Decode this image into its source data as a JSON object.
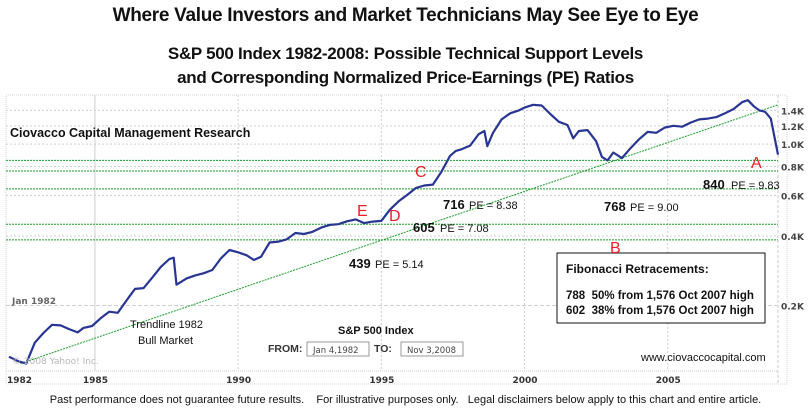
{
  "header": {
    "title": "Where Value Investors and Market Technicians May See Eye to Eye",
    "subtitle_line1": "S&P 500 Index 1982-2008:  Possible Technical Support Levels",
    "subtitle_line2": "and Corresponding Normalized Price-Earnings (PE) Ratios"
  },
  "footer": {
    "disclaimer": "Past performance does not guarantee future results.    For illustrative purposes only.   Legal disclaimers below apply to this chart and entire article."
  },
  "colors": {
    "price_line": "#283593",
    "support_lines": "#1a9e2a",
    "trendline": "#1a9e2a",
    "marker_letters": "#e8202a",
    "grid": "#c8c8c8",
    "axis_labels": "#333333"
  },
  "chart_data": {
    "type": "line",
    "title": "S&P 500 Index",
    "watermark": "Ciovacco Capital Management Research",
    "copyright": "© 2008 Yahoo! Inc.",
    "website": "www.ciovaccocapital.com",
    "from_label": "FROM:",
    "from_date": "Jan 4,1982",
    "to_label": "TO:",
    "to_date": "Nov 3,2008",
    "y_scale": "log",
    "ylim": [
      100,
      1600
    ],
    "xlim": [
      1982.0,
      2008.85
    ],
    "x_ticks": [
      {
        "value": 1982,
        "label": "1982"
      },
      {
        "value": 1985,
        "label": "1985"
      },
      {
        "value": 1990,
        "label": "1990"
      },
      {
        "value": 1995,
        "label": "1995"
      },
      {
        "value": 2000,
        "label": "2000"
      },
      {
        "value": 2005,
        "label": "2005"
      }
    ],
    "y_ticks": [
      {
        "value": 200,
        "label": "0.2K"
      },
      {
        "value": 400,
        "label": "0.4K"
      },
      {
        "value": 600,
        "label": "0.6K"
      },
      {
        "value": 800,
        "label": "0.8K"
      },
      {
        "value": 1000,
        "label": "1.0K"
      },
      {
        "value": 1200,
        "label": "1.2K"
      },
      {
        "value": 1400,
        "label": "1.4K"
      }
    ],
    "reference_gridline": {
      "value": 200,
      "label": "Jan 1982"
    },
    "series": [
      {
        "name": "S&P 500 Index",
        "x": [
          1982.0,
          1982.3,
          1982.6,
          1982.9,
          1983.2,
          1983.5,
          1983.8,
          1984.1,
          1984.4,
          1984.6,
          1984.9,
          1985.2,
          1985.5,
          1985.8,
          1986.1,
          1986.4,
          1986.7,
          1987.0,
          1987.3,
          1987.6,
          1987.75,
          1987.85,
          1988.2,
          1988.5,
          1988.8,
          1989.1,
          1989.4,
          1989.7,
          1990.0,
          1990.3,
          1990.55,
          1990.8,
          1991.1,
          1991.4,
          1991.7,
          1992.0,
          1992.3,
          1992.6,
          1992.9,
          1993.2,
          1993.5,
          1993.8,
          1994.1,
          1994.4,
          1994.7,
          1995.0,
          1995.3,
          1995.6,
          1995.9,
          1996.2,
          1996.5,
          1996.8,
          1997.1,
          1997.4,
          1997.6,
          1997.8,
          1998.1,
          1998.4,
          1998.6,
          1998.7,
          1998.9,
          1999.2,
          1999.5,
          1999.8,
          2000.0,
          2000.3,
          2000.6,
          2000.9,
          2001.2,
          2001.5,
          2001.7,
          2001.9,
          2002.2,
          2002.5,
          2002.7,
          2002.9,
          2003.1,
          2003.4,
          2003.7,
          2004.0,
          2004.3,
          2004.6,
          2004.9,
          2005.2,
          2005.5,
          2005.8,
          2006.1,
          2006.4,
          2006.7,
          2007.0,
          2007.3,
          2007.6,
          2007.8,
          2008.0,
          2008.2,
          2008.4,
          2008.6,
          2008.85
        ],
        "values": [
          120,
          115,
          112,
          138,
          152,
          165,
          164,
          158,
          153,
          160,
          163,
          176,
          188,
          186,
          210,
          236,
          238,
          264,
          294,
          318,
          322,
          246,
          262,
          270,
          276,
          285,
          320,
          348,
          340,
          330,
          315,
          325,
          375,
          378,
          387,
          412,
          408,
          417,
          435,
          447,
          450,
          463,
          472,
          455,
          462,
          465,
          520,
          565,
          602,
          645,
          662,
          668,
          760,
          890,
          935,
          950,
          985,
          1105,
          1140,
          980,
          1120,
          1280,
          1360,
          1400,
          1440,
          1480,
          1470,
          1350,
          1250,
          1210,
          1060,
          1140,
          1150,
          1030,
          880,
          850,
          920,
          870,
          960,
          1050,
          1130,
          1120,
          1180,
          1200,
          1190,
          1240,
          1280,
          1290,
          1310,
          1360,
          1420,
          1520,
          1550,
          1460,
          1400,
          1380,
          1290,
          900
        ]
      }
    ],
    "support_levels": [
      {
        "price": 840,
        "pe": "9.83",
        "marker": "A",
        "price_label": "840",
        "pe_label": "PE = 9.83"
      },
      {
        "price": 768,
        "pe": "9.00",
        "marker": "B",
        "price_label": "768",
        "pe_label": "PE = 9.00"
      },
      {
        "price": 716,
        "pe": "8.38",
        "marker": "C",
        "price_label": "716",
        "pe_label": "PE = 8.38"
      },
      {
        "price": 605,
        "pe": "7.08",
        "marker": "D",
        "price_label": "605",
        "pe_label": "PE = 7.08"
      },
      {
        "price": 439,
        "pe": "5.14",
        "marker": "E",
        "price_label": "439",
        "pe_label": "PE = 5.14"
      }
    ],
    "support_line_prices": [
      850,
      765,
      640,
      450,
      385
    ],
    "trendline": {
      "label_line1": "Trendline 1982",
      "label_line2": "Bull Market",
      "start": {
        "x": 1982.4,
        "y": 112
      },
      "end": {
        "x": 2008.85,
        "y": 1480
      }
    },
    "fibonacci_box": {
      "title": "Fibonacci Retracements:",
      "rows": [
        "788  50% from 1,576 Oct 2007 high",
        "602  38% from 1,576 Oct 2007 high"
      ]
    }
  }
}
